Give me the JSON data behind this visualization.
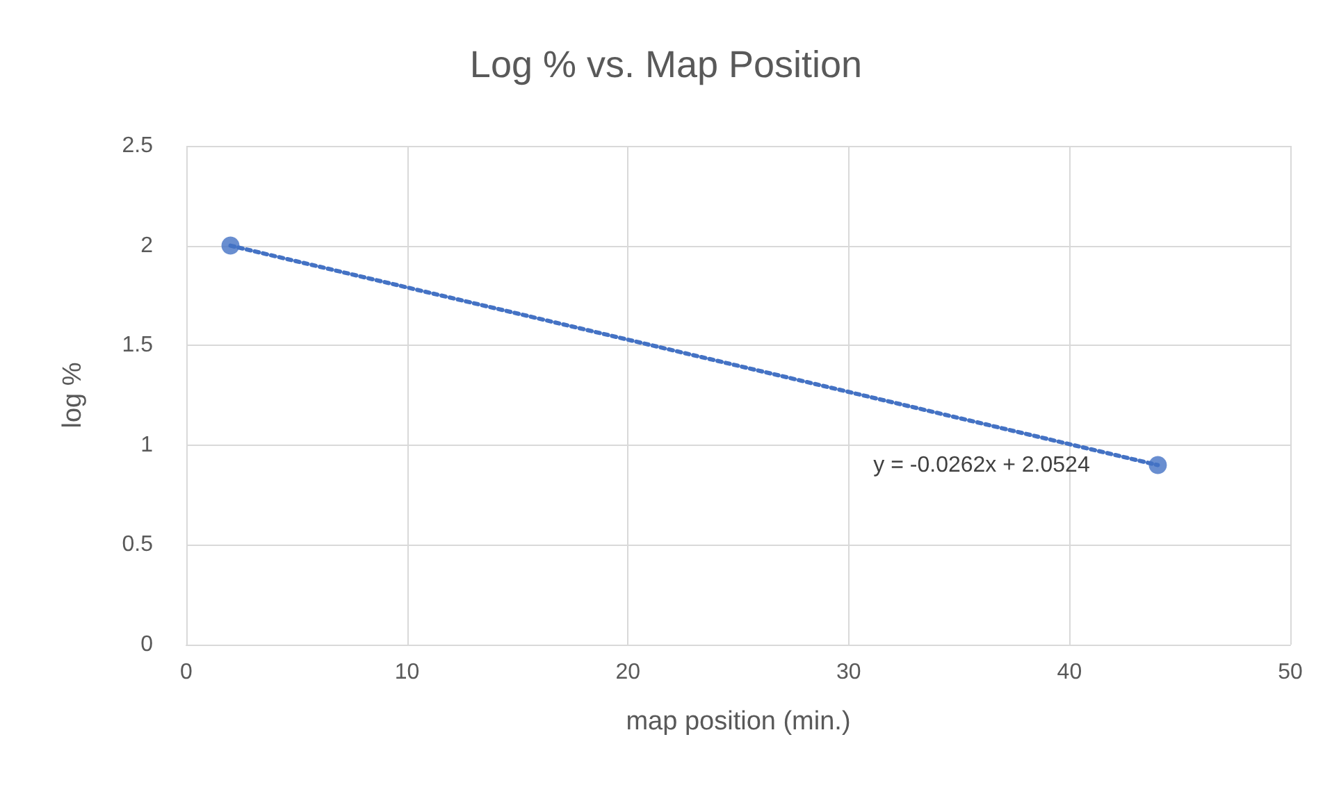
{
  "chart_data": {
    "type": "scatter",
    "title": "Log % vs. Map Position",
    "xlabel": "map position (min.)",
    "ylabel": "log %",
    "xlim": [
      0,
      50
    ],
    "xticks": [
      0,
      10,
      20,
      30,
      40,
      50
    ],
    "ylim": [
      0,
      2.5
    ],
    "yticks": [
      0,
      0.5,
      1,
      1.5,
      2,
      2.5
    ],
    "grid": true,
    "annotations": [
      "y = -0.0262x + 2.0524"
    ],
    "x": [
      2,
      44
    ],
    "series": [
      {
        "type": "scatter",
        "color": "#4472c4",
        "values": [
          2,
          0.9
        ],
        "marker": "circle"
      },
      {
        "type": "line",
        "color": "#4472c4",
        "values": [
          2.0,
          0.9
        ],
        "line_style": "dotted",
        "marker": "none"
      }
    ]
  }
}
